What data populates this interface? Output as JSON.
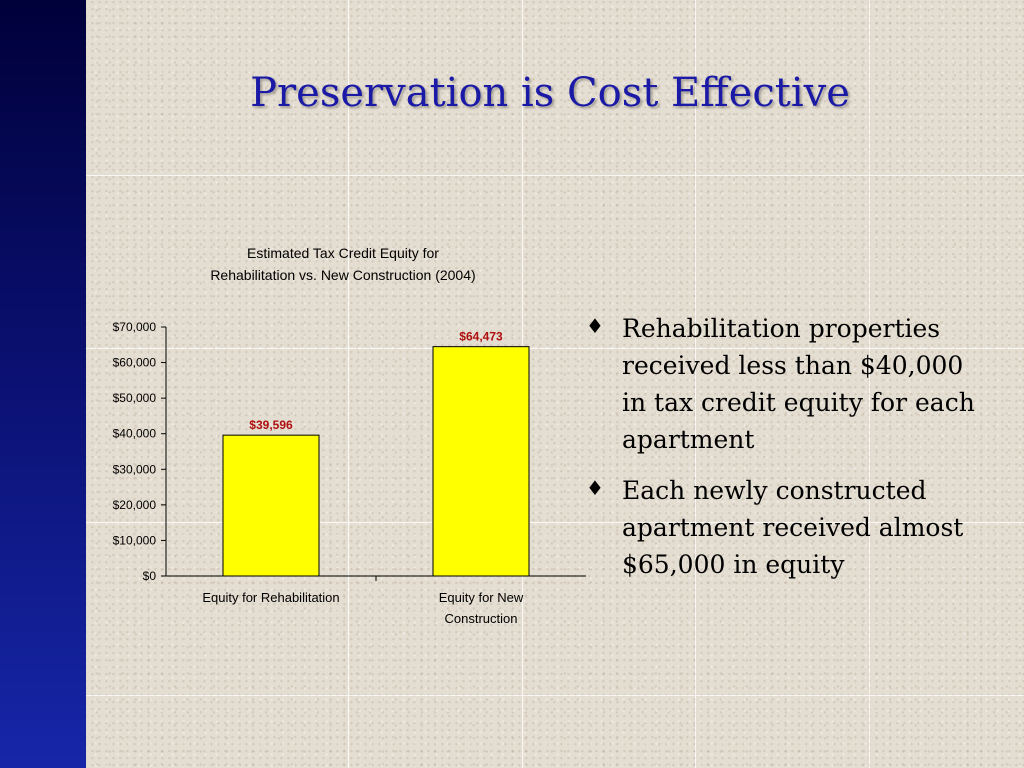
{
  "slide": {
    "title": "Preservation is Cost Effective",
    "accent_bar_color": "#0a0f6e",
    "title_color": "#1a1aa6"
  },
  "bullets": [
    {
      "icon": "diamond-bullet-icon",
      "glyph": "♦",
      "text": "Rehabilitation properties received less than $40,000 in tax credit equity for each apartment"
    },
    {
      "icon": "diamond-bullet-icon",
      "glyph": "♦",
      "text": "Each newly constructed apartment received almost $65,000 in  equity"
    }
  ],
  "chart_data": {
    "type": "bar",
    "title_lines": [
      "Estimated Tax Credit Equity for",
      "Rehabilitation vs. New Construction (2004)"
    ],
    "categories": [
      [
        "Equity for Rehabilitation"
      ],
      [
        "Equity for New",
        "Construction"
      ]
    ],
    "values": [
      39596,
      64473
    ],
    "data_labels": [
      "$39,596",
      "$64,473"
    ],
    "ylim": [
      0,
      70000
    ],
    "yticks": [
      0,
      10000,
      20000,
      30000,
      40000,
      50000,
      60000,
      70000
    ],
    "ytick_labels": [
      "$0",
      "$10,000",
      "$20,000",
      "$30,000",
      "$40,000",
      "$50,000",
      "$60,000",
      "$70,000"
    ],
    "xlabel": "",
    "ylabel": "",
    "grid": false,
    "legend": "none",
    "bar_color": "#ffff00",
    "bar_edge_color": "#000000",
    "data_label_color": "#b01010"
  }
}
